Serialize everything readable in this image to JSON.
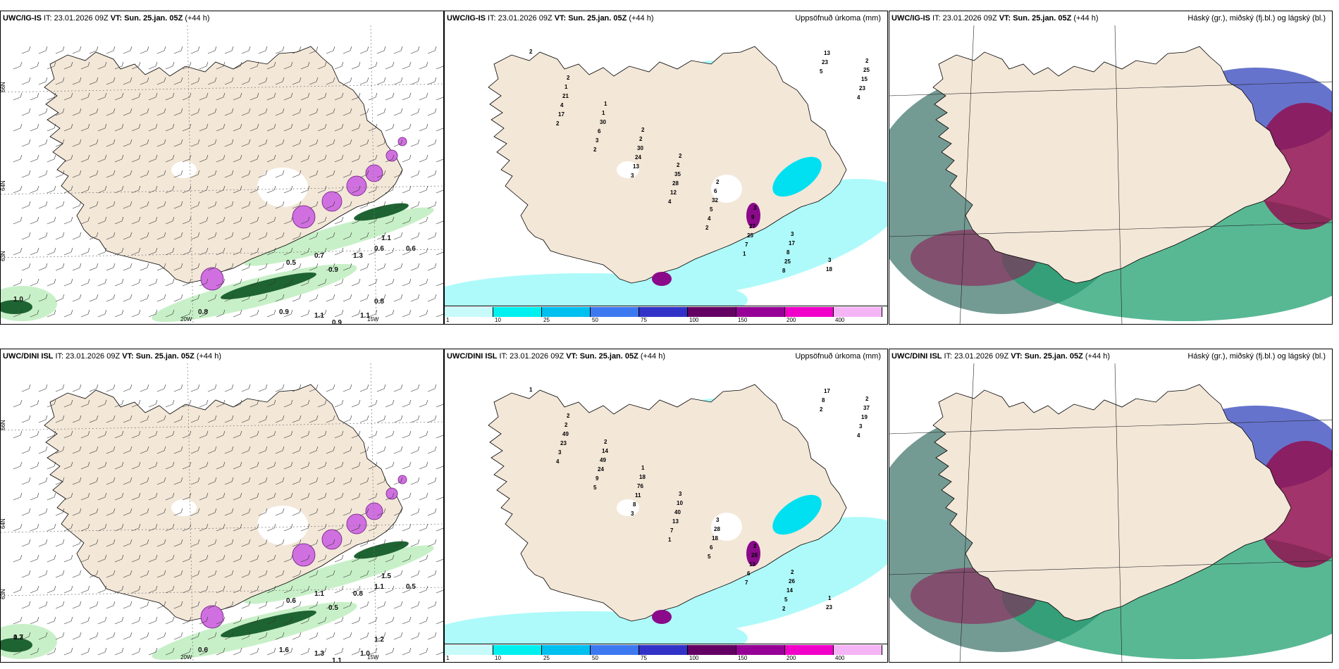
{
  "panels": [
    {
      "id": "p1",
      "model": "UWC/IG-IS",
      "it_label": "IT:",
      "it": "23.01.2026 09Z",
      "vt_label": "VT:",
      "vt": "Sun. 25.jan. 05Z",
      "lead": "(+44 h)",
      "right_title": "",
      "kind": "wind",
      "lat_labels": [
        "66N",
        "64N",
        "63N"
      ],
      "lon_labels": [
        "20W",
        "15W"
      ],
      "values": [
        "1.0",
        "0.8",
        "0.5",
        "0.7",
        "0.9",
        "1.3",
        "0.6",
        "0.6",
        "1.1",
        "0.9",
        "1.1",
        "0.8",
        "0.9",
        "1.1"
      ]
    },
    {
      "id": "p2",
      "model": "UWC/IG-IS",
      "it_label": "IT:",
      "it": "23.01.2026 09Z",
      "vt_label": "VT:",
      "vt": "Sun. 25.jan. 05Z",
      "lead": "(+44 h)",
      "right_title": "Uppsöfnuð úrkoma (mm)",
      "kind": "precip",
      "values": [
        "2",
        "2",
        "1",
        "2",
        "2",
        "2",
        "3",
        "3",
        "3",
        "2",
        "1",
        "1",
        "2",
        "2",
        "6",
        "9",
        "17",
        "18",
        "25",
        "21",
        "30",
        "30",
        "35",
        "32",
        "27",
        "8",
        "13",
        "15",
        "4",
        "6",
        "24",
        "28",
        "5",
        "25",
        "25",
        "23",
        "23",
        "17",
        "3",
        "13",
        "12",
        "4",
        "7",
        "8",
        "5",
        "4",
        "2",
        "2",
        "3",
        "4",
        "2",
        "1"
      ]
    },
    {
      "id": "p3",
      "model": "UWC/IG-IS",
      "it_label": "IT:",
      "it": "23.01.2026 09Z",
      "vt_label": "VT:",
      "vt": "Sun. 25.jan. 05Z",
      "lead": "(+44 h)",
      "right_title": "Háský (gr.), miðský (fj.bl.) og lágský (bl.)",
      "kind": "cloud"
    },
    {
      "id": "p4",
      "model": "UWC/DINI ISL",
      "it_label": "IT:",
      "it": "23.01.2026 09Z",
      "vt_label": "VT:",
      "vt": "Sun. 25.jan. 05Z",
      "lead": "(+44 h)",
      "right_title": "",
      "kind": "wind",
      "lat_labels": [
        "66N",
        "64N",
        "63N"
      ],
      "lon_labels": [
        "20W",
        "15W"
      ],
      "values": [
        "0.7",
        "0.6",
        "0.6",
        "1.1",
        "0.5",
        "0.8",
        "1.1",
        "0.5",
        "1.5",
        "1.6",
        "1.3",
        "1.2",
        "1.1",
        "1.0",
        "1.3"
      ]
    },
    {
      "id": "p5",
      "model": "UWC/DINI ISL",
      "it_label": "IT:",
      "it": "23.01.2026 09Z",
      "vt_label": "VT:",
      "vt": "Sun. 25.jan. 05Z",
      "lead": "(+44 h)",
      "right_title": "Uppsöfnuð úrkoma (mm)",
      "kind": "precip",
      "values": [
        "1",
        "2",
        "2",
        "1",
        "3",
        "3",
        "2",
        "2",
        "1",
        "2",
        "2",
        "14",
        "18",
        "10",
        "28",
        "28",
        "26",
        "23",
        "37",
        "49",
        "49",
        "76",
        "40",
        "18",
        "13",
        "14",
        "17",
        "19",
        "23",
        "24",
        "11",
        "13",
        "6",
        "6",
        "5",
        "8",
        "3",
        "3",
        "9",
        "8",
        "7",
        "5",
        "7",
        "2",
        "2",
        "4",
        "4",
        "5",
        "3",
        "1"
      ]
    },
    {
      "id": "p6",
      "model": "UWC/DINI ISL",
      "it_label": "IT:",
      "it": "23.01.2026 09Z",
      "vt_label": "VT:",
      "vt": "Sun. 25.jan. 05Z",
      "lead": "(+44 h)",
      "right_title": "Háský (gr.), miðský (fj.bl.) og lágský (bl.)",
      "kind": "cloud"
    }
  ],
  "colorbar": {
    "ticks": [
      "1",
      "10",
      "25",
      "50",
      "75",
      "100",
      "150",
      "200",
      "400"
    ],
    "colors": [
      "#c8fafa",
      "#00f0f0",
      "#00c0f0",
      "#3c78f0",
      "#3232c8",
      "#640064",
      "#960096",
      "#f000c8",
      "#f5b4f5"
    ]
  },
  "colors": {
    "land": "#f3e7d8",
    "sea": "#ffffff",
    "coast": "#000000",
    "precip_light": "#aefafa",
    "precip_mid": "#00e0f0",
    "precip_high": "#8a0a8a",
    "wind_green_light": "#c8f0c8",
    "wind_green_dark": "#1e6432",
    "snow_purple": "#d070e0",
    "cloud_high": "#20a070",
    "cloud_mid": "#4050c0",
    "cloud_low": "#901050",
    "cloud_base": "#5a8a80"
  },
  "icons": {
    "hatch": "hatch-pattern",
    "barb": "wind-barb"
  }
}
